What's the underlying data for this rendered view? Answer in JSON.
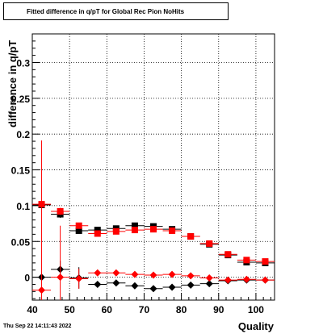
{
  "title": "Fitted difference in q/pT for Global Rec Pion NoHits",
  "timestamp": "Thu Sep 22 14:11:43 2022",
  "colors": {
    "series_black": "#000000",
    "series_red": "#ff0000",
    "grid": "#000000"
  },
  "chart_data": {
    "type": "scatter",
    "title": "Fitted difference in q/pT for Global Rec Pion NoHits",
    "xlabel": "Quality",
    "ylabel": "difference in q/pT",
    "xlim": [
      40,
      105
    ],
    "ylim": [
      -0.032,
      0.34
    ],
    "grid": true,
    "x_ticks": [
      40,
      50,
      60,
      70,
      80,
      90,
      100
    ],
    "y_ticks": [
      0,
      0.05,
      0.1,
      0.15,
      0.2,
      0.25,
      0.3
    ],
    "x_tick_labels": [
      "40",
      "50",
      "60",
      "70",
      "80",
      "90",
      "100"
    ],
    "y_tick_labels": [
      "0",
      "0.05",
      "0.1",
      "0.15",
      "0.2",
      "0.25",
      "0.3"
    ],
    "series": [
      {
        "marker": "square",
        "color": "#000000",
        "x": [
          42.5,
          47.5,
          52.5,
          57.5,
          62.5,
          67.5,
          72.5,
          77.5,
          82.5,
          87.5,
          92.5,
          97.5,
          102.5
        ],
        "y": [
          0.101,
          0.088,
          0.065,
          0.066,
          0.068,
          0.072,
          0.071,
          0.067,
          0.057,
          0.046,
          0.031,
          0.021,
          0.02
        ],
        "yerr": [
          0.004,
          0.005,
          0.004,
          0.004,
          0.004,
          0.004,
          0.004,
          0.003,
          0.003,
          0.003,
          0.002,
          0.002,
          0.002
        ]
      },
      {
        "marker": "square",
        "color": "#ff0000",
        "x": [
          42.5,
          47.5,
          52.5,
          57.5,
          62.5,
          67.5,
          72.5,
          77.5,
          82.5,
          87.5,
          92.5,
          97.5,
          102.5
        ],
        "y": [
          0.102,
          0.092,
          0.072,
          0.061,
          0.064,
          0.066,
          0.067,
          0.065,
          0.057,
          0.047,
          0.032,
          0.024,
          0.022
        ],
        "yerr": [
          0.004,
          0.005,
          0.004,
          0.004,
          0.004,
          0.004,
          0.004,
          0.003,
          0.003,
          0.003,
          0.002,
          0.002,
          0.002
        ]
      },
      {
        "marker": "circle",
        "color": "#000000",
        "x": [
          42.5,
          47.5,
          52.5,
          57.5,
          62.5,
          67.5,
          72.5,
          77.5,
          82.5,
          87.5,
          92.5,
          97.5,
          102.5
        ],
        "y": [
          0.0,
          0.011,
          -0.001,
          -0.01,
          -0.008,
          -0.012,
          -0.016,
          -0.014,
          -0.011,
          -0.009,
          -0.005,
          -0.004,
          -0.004
        ],
        "yerr": [
          0.0,
          0.012,
          0.015,
          0.004,
          0.003,
          0.003,
          0.003,
          0.003,
          0.002,
          0.002,
          0.002,
          0.002,
          0.002
        ]
      },
      {
        "marker": "circle",
        "color": "#ff0000",
        "x": [
          42.5,
          47.5,
          52.5,
          57.5,
          62.5,
          67.5,
          72.5,
          77.5,
          82.5,
          87.5,
          92.5,
          97.5,
          102.5
        ],
        "y": [
          -0.018,
          0.0,
          -0.002,
          0.006,
          0.006,
          0.004,
          0.003,
          0.004,
          0.002,
          -0.001,
          -0.004,
          -0.003,
          -0.004
        ],
        "yerr": [
          0.209,
          0.072,
          0.014,
          0.004,
          0.003,
          0.003,
          0.003,
          0.003,
          0.002,
          0.002,
          0.002,
          0.002,
          0.002
        ]
      }
    ]
  }
}
